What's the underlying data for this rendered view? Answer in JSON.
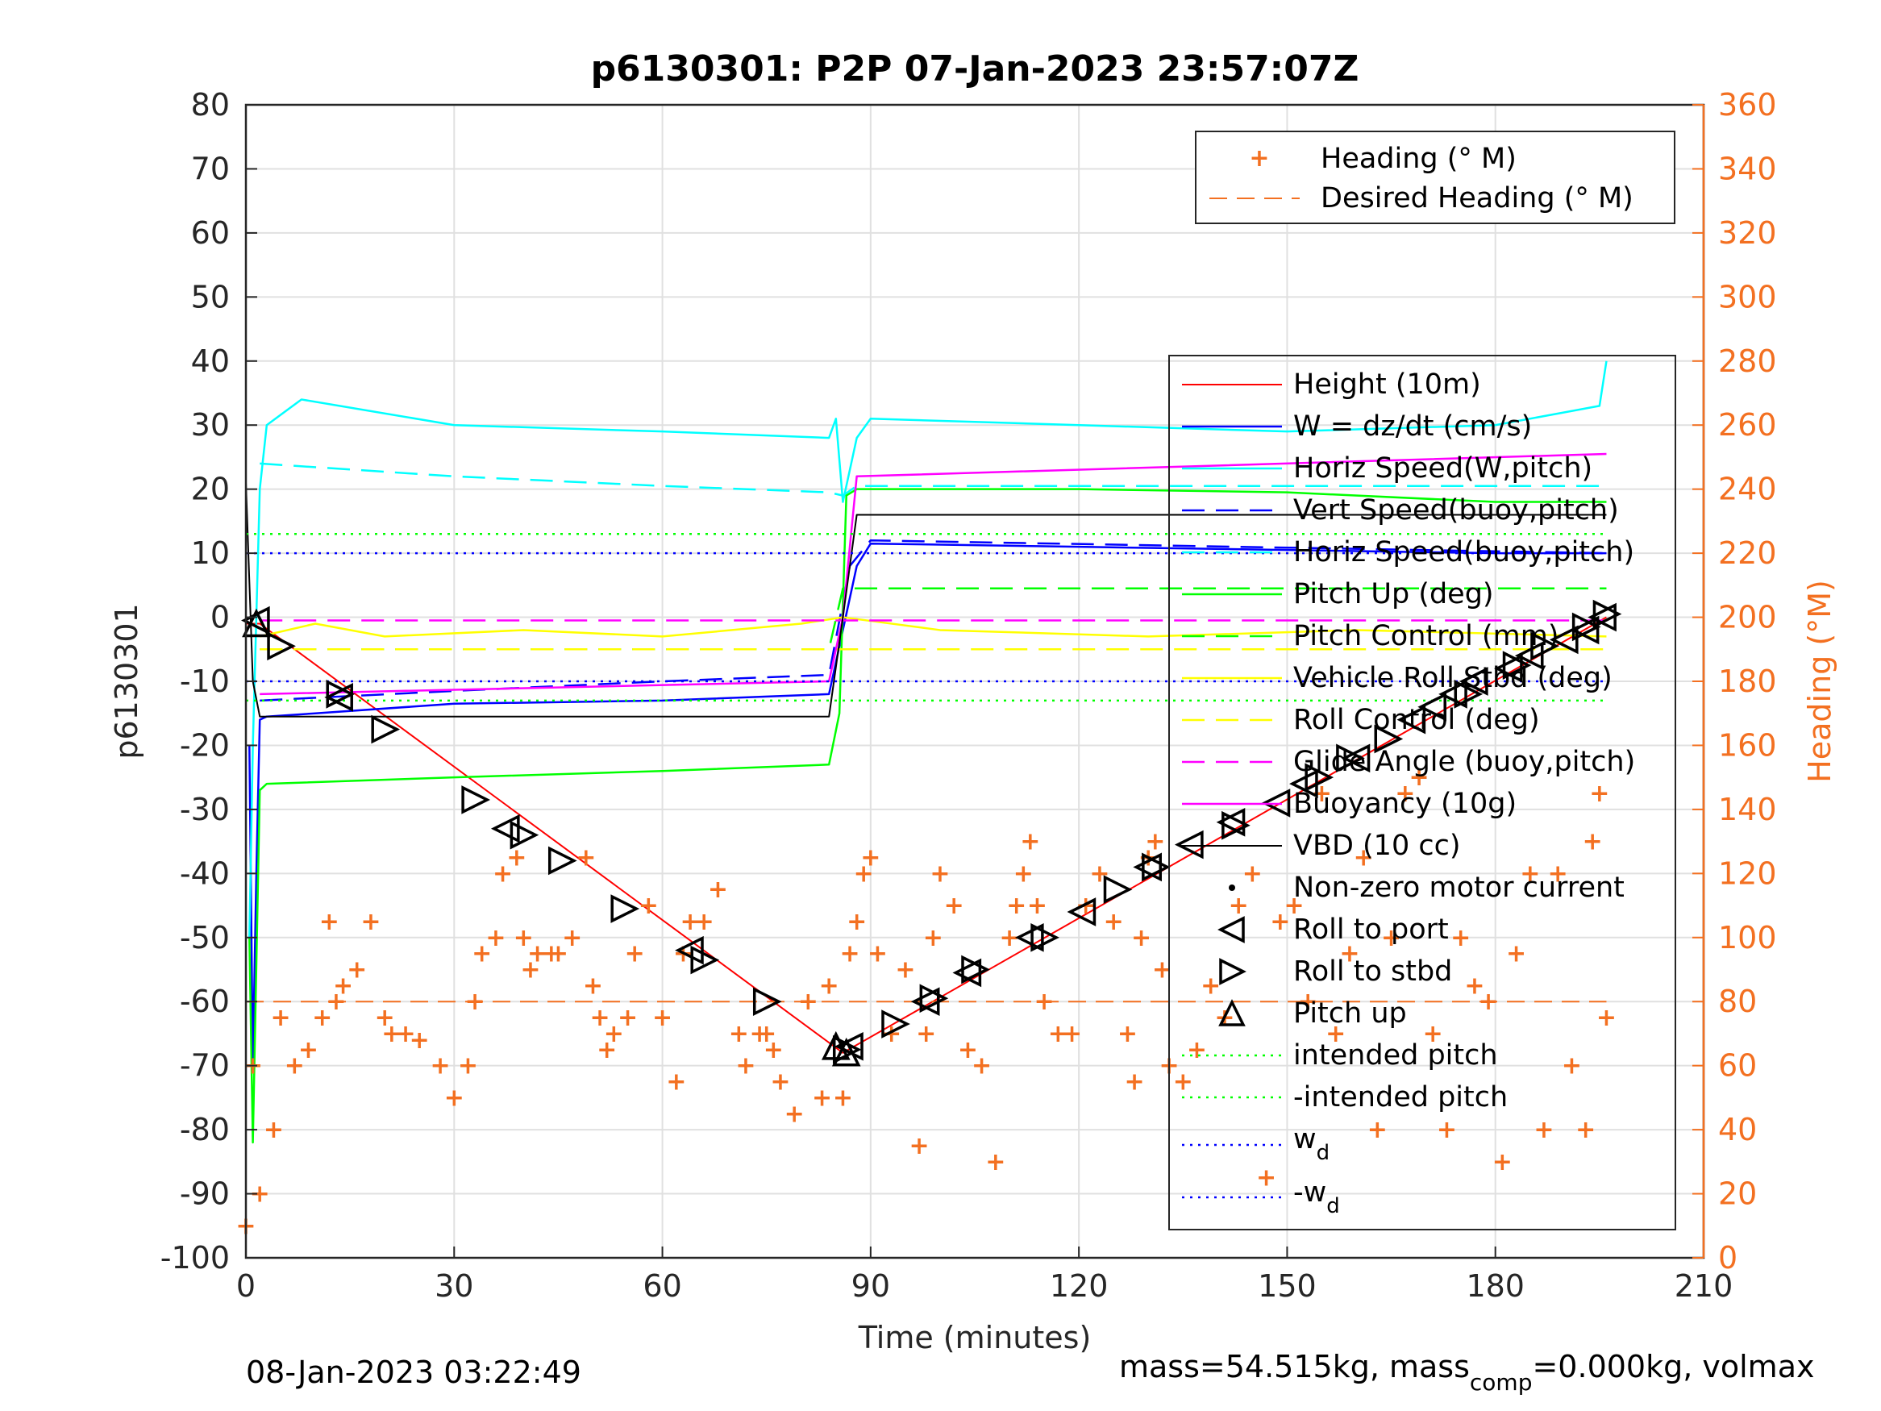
{
  "chart_data": {
    "type": "line",
    "title": "p6130301: P2P 07-Jan-2023 23:57:07Z",
    "xlabel": "Time (minutes)",
    "ylabel": "p6130301",
    "y2label": "Heading (°M)",
    "xlim": [
      0,
      210
    ],
    "ylim": [
      -100,
      80
    ],
    "y2lim": [
      0,
      360
    ],
    "xticks": [
      "0",
      "30",
      "60",
      "90",
      "120",
      "150",
      "180",
      "210"
    ],
    "yticks": [
      "80",
      "70",
      "60",
      "50",
      "40",
      "30",
      "20",
      "10",
      "0",
      "-10",
      "-20",
      "-30",
      "-40",
      "-50",
      "-60",
      "-70",
      "-80",
      "-90",
      "-100"
    ],
    "y2ticks": [
      "360",
      "340",
      "320",
      "300",
      "280",
      "260",
      "240",
      "220",
      "200",
      "180",
      "160",
      "140",
      "120",
      "100",
      "80",
      "60",
      "40",
      "20",
      "0"
    ],
    "grid": true,
    "legend_heading": {
      "placement": "top-right",
      "entries": [
        "Heading (° M)",
        "Desired Heading (° M)"
      ]
    },
    "legend_main": {
      "placement": "right",
      "entries": [
        "Height (10m)",
        "W = dz/dt (cm/s)",
        "Horiz Speed(W,pitch)",
        "Vert Speed(buoy,pitch)",
        "Horiz Speed(buoy,pitch)",
        "Pitch Up (deg)",
        "Pitch Control (mm)",
        "Vehicle Roll Stbd (deg)",
        "Roll Control (deg)",
        "Glide Angle (buoy,pitch)",
        "Buoyancy (10g)",
        "VBD (10 cc)",
        "Non-zero motor current",
        "Roll to port",
        "Roll to stbd",
        "Pitch up",
        "intended pitch",
        "-intended pitch",
        "w",
        "-w"
      ]
    },
    "wd_subscript": "d",
    "footer_left": "08-Jan-2023 03:22:49",
    "footer_right_a": "mass=54.515kg, mass",
    "footer_right_sub": "comp",
    "footer_right_b": "=0.000kg, volmax",
    "colors": {
      "height": "#ff0000",
      "w": "#0000ff",
      "horiz_speed": "#00ffff",
      "pitch": "#00ff00",
      "roll": "#ffff00",
      "glide": "#ff00ff",
      "vbd": "#000000",
      "heading": "#f37021",
      "dotted_blue": "#0000ff",
      "dotted_green": "#00ff00"
    },
    "series": [
      {
        "name": "Height (10m)",
        "x": [
          0,
          2,
          86,
          196
        ],
        "y": [
          -1,
          -1,
          -68,
          0
        ]
      },
      {
        "name": "W = dz/dt (cm/s)",
        "x": [
          0.5,
          1,
          1.5,
          2,
          3,
          10,
          30,
          60,
          84,
          88,
          90,
          120,
          150,
          180,
          196
        ],
        "y": [
          -20,
          -70,
          -40,
          -16,
          -15.5,
          -15,
          -13.5,
          -13,
          -12,
          8,
          11.5,
          11,
          10.5,
          10,
          10
        ]
      },
      {
        "name": "Horiz Speed(W,pitch)",
        "x": [
          0.5,
          1,
          2,
          3,
          8,
          30,
          60,
          84,
          85,
          86,
          88,
          90,
          120,
          150,
          180,
          195,
          196
        ],
        "y": [
          -50,
          -20,
          20,
          30,
          34,
          30,
          29,
          28,
          31,
          18,
          28,
          31,
          30,
          29,
          30,
          33,
          40
        ]
      },
      {
        "name": "Vert Speed(buoy,pitch)",
        "x": [
          2,
          30,
          60,
          84,
          87,
          90,
          196
        ],
        "y": [
          -13,
          -11.5,
          -10,
          -9,
          8,
          12,
          10
        ]
      },
      {
        "name": "Horiz Speed(buoy,pitch)",
        "x": [
          2,
          30,
          60,
          84,
          86,
          88,
          120,
          150,
          180,
          196
        ],
        "y": [
          24,
          22,
          20.5,
          19.5,
          19,
          20.5,
          20.5,
          20.5,
          20.5,
          20.5
        ]
      },
      {
        "name": "Pitch Up (deg)",
        "x": [
          0.5,
          1,
          2,
          3,
          30,
          60,
          84,
          85.5,
          86.5,
          88,
          120,
          150,
          180,
          196
        ],
        "y": [
          -50,
          -82,
          -27,
          -26,
          -25,
          -24,
          -23,
          -15,
          19,
          20,
          20,
          19.5,
          18,
          18
        ]
      },
      {
        "name": "Pitch Control (mm)",
        "x": [
          2,
          84,
          86,
          196
        ],
        "y": [
          -5,
          -5,
          4.5,
          4.5
        ]
      },
      {
        "name": "Vehicle Roll Stbd (deg)",
        "x": [
          2,
          10,
          20,
          40,
          60,
          80,
          86,
          100,
          130,
          160,
          196
        ],
        "y": [
          -3,
          -1,
          -3,
          -2,
          -3,
          -1,
          0,
          -2,
          -3,
          -2,
          -3
        ]
      },
      {
        "name": "Roll Control (deg)",
        "x": [
          2,
          196
        ],
        "y": [
          -5,
          -5
        ]
      },
      {
        "name": "Glide Angle (buoy,pitch)",
        "x": [
          2,
          196
        ],
        "y": [
          -0.5,
          -0.5
        ]
      },
      {
        "name": "Buoyancy (10g)",
        "x": [
          2,
          84,
          86,
          88,
          196
        ],
        "y": [
          -12,
          -10,
          0,
          22,
          25.5
        ]
      },
      {
        "name": "VBD (10 cc)",
        "x": [
          0,
          1,
          2,
          84,
          86,
          88,
          196
        ],
        "y": [
          21,
          -10,
          -15.5,
          -15.5,
          0,
          16,
          16
        ]
      },
      {
        "name": "intended pitch",
        "x": [
          0,
          196
        ],
        "y": [
          13,
          13
        ]
      },
      {
        "name": "-intended pitch",
        "x": [
          0,
          196
        ],
        "y": [
          -13,
          -13
        ]
      },
      {
        "name": "w",
        "x": [
          0,
          196
        ],
        "y": [
          10,
          10
        ]
      },
      {
        "name": "-w",
        "x": [
          0,
          196
        ],
        "y": [
          -10,
          -10
        ]
      },
      {
        "name": "Desired Heading (° M)",
        "axis": "right",
        "x": [
          0,
          196
        ],
        "y": [
          80,
          80
        ]
      },
      {
        "name": "Heading (° M)",
        "axis": "right",
        "x": [
          0,
          1,
          2,
          4,
          5,
          7,
          9,
          11,
          12,
          13,
          14,
          16,
          18,
          20,
          21,
          23,
          25,
          28,
          30,
          32,
          33,
          34,
          36,
          37,
          39,
          40,
          41,
          42,
          44,
          45,
          47,
          49,
          50,
          51,
          52,
          53,
          55,
          56,
          58,
          60,
          62,
          63,
          64,
          66,
          68,
          71,
          72,
          74,
          75,
          76,
          77,
          79,
          81,
          83,
          84,
          86,
          87,
          88,
          89,
          90,
          91,
          93,
          95,
          97,
          98,
          99,
          100,
          102,
          104,
          106,
          108,
          110,
          111,
          112,
          113,
          114,
          115,
          117,
          119,
          121,
          123,
          125,
          127,
          128,
          129,
          130,
          131,
          132,
          133,
          135,
          137,
          139,
          141,
          143,
          145,
          147,
          149,
          151,
          153,
          155,
          157,
          159,
          161,
          163,
          165,
          167,
          169,
          171,
          173,
          175,
          177,
          179,
          181,
          183,
          185,
          187,
          189,
          191,
          193,
          194,
          195,
          196
        ],
        "y": [
          10,
          60,
          20,
          40,
          75,
          60,
          65,
          75,
          105,
          80,
          85,
          90,
          105,
          75,
          70,
          70,
          68,
          60,
          50,
          60,
          80,
          95,
          100,
          120,
          125,
          100,
          90,
          95,
          95,
          95,
          100,
          125,
          85,
          75,
          65,
          70,
          75,
          95,
          110,
          75,
          55,
          95,
          105,
          105,
          115,
          70,
          60,
          70,
          70,
          65,
          55,
          45,
          80,
          50,
          85,
          50,
          95,
          105,
          120,
          125,
          95,
          70,
          90,
          35,
          70,
          100,
          120,
          110,
          65,
          60,
          30,
          100,
          110,
          120,
          130,
          110,
          80,
          70,
          70,
          110,
          120,
          105,
          70,
          55,
          100,
          125,
          130,
          90,
          60,
          55,
          65,
          85,
          75,
          110,
          120,
          25,
          105,
          110,
          80,
          145,
          70,
          95,
          125,
          40,
          100,
          145,
          150,
          70,
          40,
          100,
          85,
          80,
          30,
          95,
          120,
          40,
          120,
          60,
          40,
          130,
          145,
          75
        ]
      },
      {
        "name": "Roll to port",
        "marker": "triangle-left",
        "x": [
          1.5,
          13.5,
          37.5,
          64,
          87,
          98,
          104,
          113,
          120.5,
          130,
          136,
          142,
          148.5,
          152.5,
          160,
          168,
          171,
          174,
          177,
          182,
          185,
          190,
          193,
          195.5
        ],
        "y": [
          -0.5,
          -12.5,
          -33,
          -52,
          -67,
          -60,
          -55.5,
          -50,
          -46,
          -39,
          -35.5,
          -32,
          -29,
          -26,
          -22,
          -16,
          -14,
          -12,
          -10,
          -8,
          -6,
          -3.5,
          -2,
          0
        ]
      },
      {
        "name": "Roll to stbd",
        "marker": "triangle-right",
        "x": [
          5,
          13.5,
          20,
          33,
          40,
          45.5,
          54.5,
          66,
          75,
          86.5,
          93.5,
          99,
          105,
          115,
          125.5,
          131,
          142.5,
          154.5,
          159,
          164.5,
          176,
          183,
          187,
          193,
          196
        ],
        "y": [
          -4.5,
          -12,
          -17.5,
          -28.5,
          -34,
          -38,
          -45.5,
          -53.5,
          -60,
          -67.5,
          -63.5,
          -59.5,
          -55,
          -50,
          -42.5,
          -39,
          -32.5,
          -25,
          -22,
          -19,
          -12,
          -7.5,
          -4.5,
          -1.5,
          0.5
        ]
      },
      {
        "name": "Pitch up",
        "marker": "triangle-up",
        "x": [
          1.5,
          85,
          86.5
        ],
        "y": [
          -1,
          -67,
          -68
        ]
      }
    ]
  }
}
